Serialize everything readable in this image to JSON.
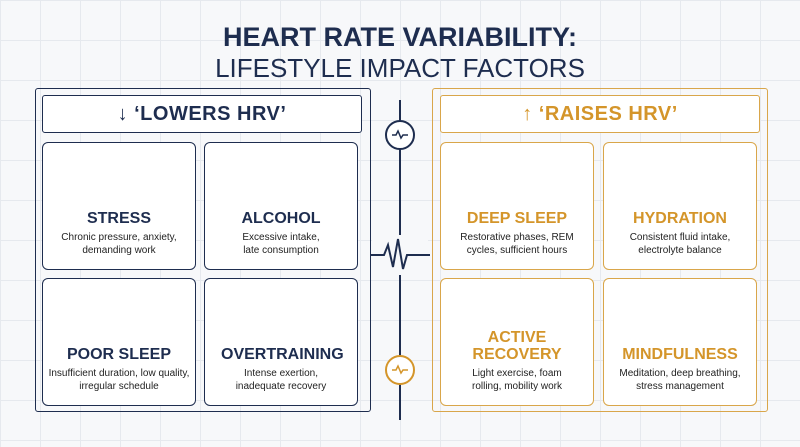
{
  "title": {
    "line1": "HEART RATE VARIABILITY:",
    "line2": "LIFESTYLE IMPACT FACTORS"
  },
  "lowers": {
    "heading": "↓ ‘LOWERS HRV’",
    "cards": [
      {
        "title": "STRESS",
        "desc": [
          "Chronic pressure, anxiety,",
          "demanding work"
        ]
      },
      {
        "title": "ALCOHOL",
        "desc": [
          "Excessive intake,",
          "late consumption"
        ]
      },
      {
        "title": "POOR SLEEP",
        "desc": [
          "Insufficient duration, low quality,",
          "irregular schedule"
        ]
      },
      {
        "title": "OVERTRAINING",
        "desc": [
          "Intense exertion,",
          "inadequate recovery"
        ]
      }
    ]
  },
  "raises": {
    "heading": "↑ ‘RAISES HRV’",
    "cards": [
      {
        "title": "DEEP SLEEP",
        "desc": [
          "Restorative phases, REM",
          "cycles, sufficient hours"
        ]
      },
      {
        "title": "HYDRATION",
        "desc": [
          "Consistent fluid intake,",
          "electrolyte balance"
        ]
      },
      {
        "title": "ACTIVE RECOVERY",
        "desc": [
          "Light exercise, foam",
          "rolling, mobility work"
        ]
      },
      {
        "title": "MINDFULNESS",
        "desc": [
          "Meditation, deep breathing,",
          "stress management"
        ]
      }
    ]
  }
}
